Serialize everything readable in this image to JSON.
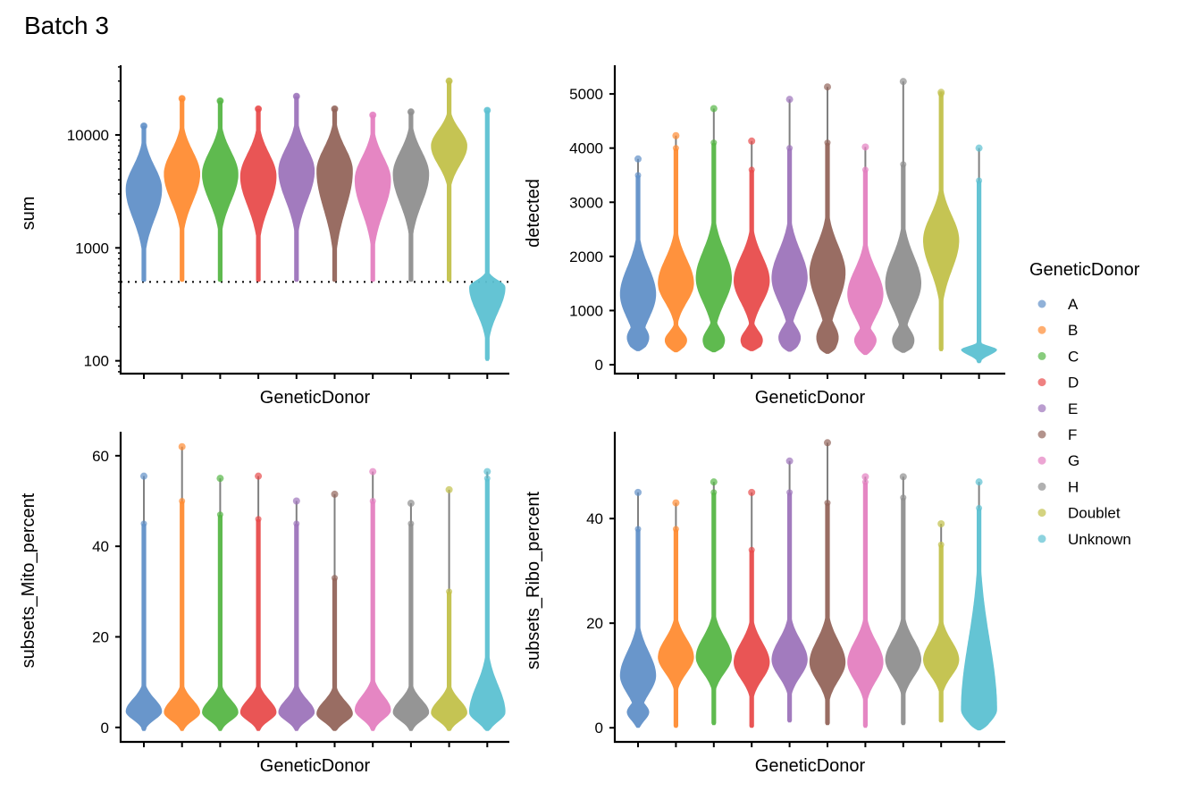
{
  "title": "Batch 3",
  "legend": {
    "title": "GeneticDonor",
    "placement": "right",
    "items": [
      {
        "label": "A",
        "color": "#6190C8"
      },
      {
        "label": "B",
        "color": "#FF8C33"
      },
      {
        "label": "C",
        "color": "#56B646"
      },
      {
        "label": "D",
        "color": "#E84C4C"
      },
      {
        "label": "E",
        "color": "#9D74BB"
      },
      {
        "label": "F",
        "color": "#93655B"
      },
      {
        "label": "G",
        "color": "#E47FC0"
      },
      {
        "label": "H",
        "color": "#8F8F8F"
      },
      {
        "label": "Doublet",
        "color": "#C2C14A"
      },
      {
        "label": "Unknown",
        "color": "#5CC1D2"
      }
    ]
  },
  "chart_data": [
    {
      "type": "violin",
      "xlabel": "GeneticDonor",
      "ylabel": "sum",
      "yscale": "log10",
      "ylim": [
        77,
        41400
      ],
      "yticks": [
        100,
        1000,
        10000
      ],
      "ytick_labels": [
        "100",
        "1000",
        "10000"
      ],
      "hline": {
        "value": 500,
        "style": "dotted"
      },
      "categories": [
        "A",
        "B",
        "C",
        "D",
        "E",
        "F",
        "G",
        "H",
        "Doublet",
        "Unknown"
      ],
      "violins": [
        {
          "min": 500,
          "max": 12000,
          "mode": 3300,
          "spread_low": 0.26,
          "spread_high": 0.2,
          "outlier_max": 12000
        },
        {
          "min": 500,
          "max": 21000,
          "mode": 4500,
          "spread_low": 0.24,
          "spread_high": 0.2,
          "outlier_max": 21000
        },
        {
          "min": 500,
          "max": 20000,
          "mode": 4500,
          "spread_low": 0.24,
          "spread_high": 0.2,
          "outlier_max": 20000
        },
        {
          "min": 500,
          "max": 17000,
          "mode": 4300,
          "spread_low": 0.26,
          "spread_high": 0.2,
          "outlier_max": 17000
        },
        {
          "min": 500,
          "max": 22000,
          "mode": 4800,
          "spread_low": 0.26,
          "spread_high": 0.2,
          "outlier_max": 22000
        },
        {
          "min": 500,
          "max": 17000,
          "mode": 4800,
          "spread_low": 0.34,
          "spread_high": 0.2,
          "outlier_max": 17000
        },
        {
          "min": 500,
          "max": 15000,
          "mode": 4000,
          "spread_low": 0.28,
          "spread_high": 0.2,
          "outlier_max": 15000
        },
        {
          "min": 500,
          "max": 16000,
          "mode": 4500,
          "spread_low": 0.26,
          "spread_high": 0.2,
          "outlier_max": 16000
        },
        {
          "min": 500,
          "max": 30000,
          "mode": 8000,
          "spread_low": 0.17,
          "spread_high": 0.14,
          "outlier_max": 30000
        },
        {
          "min": 100,
          "max": 16500,
          "mode": 450,
          "spread_low": 0.22,
          "spread_high": 0.06,
          "outlier_max": 16500
        }
      ]
    },
    {
      "type": "violin",
      "xlabel": "GeneticDonor",
      "ylabel": "detected",
      "yscale": "linear",
      "ylim": [
        -165,
        5530
      ],
      "yticks": [
        0,
        1000,
        2000,
        3000,
        4000,
        5000
      ],
      "ytick_labels": [
        "0",
        "1000",
        "2000",
        "3000",
        "4000",
        "5000"
      ],
      "categories": [
        "A",
        "B",
        "C",
        "D",
        "E",
        "F",
        "G",
        "H",
        "Doublet",
        "Unknown"
      ],
      "violins": [
        {
          "min": 250,
          "max": 3500,
          "mode": 1300,
          "spread_low": 450,
          "spread_high": 500,
          "bump": 500,
          "outlier_max": 3800
        },
        {
          "min": 230,
          "max": 4000,
          "mode": 1500,
          "spread_low": 350,
          "spread_high": 450,
          "bump": 450,
          "outlier_max": 4230
        },
        {
          "min": 230,
          "max": 4100,
          "mode": 1600,
          "spread_low": 450,
          "spread_high": 500,
          "bump": 450,
          "outlier_max": 4730
        },
        {
          "min": 250,
          "max": 3600,
          "mode": 1550,
          "spread_low": 400,
          "spread_high": 450,
          "bump": 450,
          "outlier_max": 4130
        },
        {
          "min": 240,
          "max": 4000,
          "mode": 1600,
          "spread_low": 450,
          "spread_high": 500,
          "bump": 500,
          "outlier_max": 4900
        },
        {
          "min": 200,
          "max": 4100,
          "mode": 1700,
          "spread_low": 550,
          "spread_high": 500,
          "bump": 500,
          "outlier_max": 5130
        },
        {
          "min": 180,
          "max": 3600,
          "mode": 1300,
          "spread_low": 400,
          "spread_high": 450,
          "bump": 450,
          "outlier_max": 4020
        },
        {
          "min": 220,
          "max": 3700,
          "mode": 1500,
          "spread_low": 450,
          "spread_high": 500,
          "bump": 450,
          "outlier_max": 5230
        },
        {
          "min": 250,
          "max": 5000,
          "mode": 2300,
          "spread_low": 550,
          "spread_high": 450,
          "outlier_max": 5030
        },
        {
          "min": 30,
          "max": 3400,
          "mode": 280,
          "spread_low": 100,
          "spread_high": 60,
          "outlier_max": 4000
        }
      ]
    },
    {
      "type": "violin",
      "xlabel": "GeneticDonor",
      "ylabel": "subsets_Mito_percent",
      "yscale": "linear",
      "ylim": [
        -3.2,
        65.3
      ],
      "yticks": [
        0,
        20,
        40,
        60
      ],
      "ytick_labels": [
        "0",
        "20",
        "40",
        "60"
      ],
      "categories": [
        "A",
        "B",
        "C",
        "D",
        "E",
        "F",
        "G",
        "H",
        "Doublet",
        "Unknown"
      ],
      "violins": [
        {
          "min": -0.8,
          "max": 45,
          "mode": 3.5,
          "spread_low": 1.8,
          "spread_high": 2.8,
          "outlier_max": 55.5
        },
        {
          "min": -0.8,
          "max": 50,
          "mode": 3.3,
          "spread_low": 1.8,
          "spread_high": 2.8,
          "outlier_max": 62
        },
        {
          "min": -0.8,
          "max": 47,
          "mode": 3.3,
          "spread_low": 1.8,
          "spread_high": 2.8,
          "outlier_max": 55
        },
        {
          "min": -0.8,
          "max": 46,
          "mode": 3.3,
          "spread_low": 1.8,
          "spread_high": 2.8,
          "outlier_max": 55.5
        },
        {
          "min": -0.8,
          "max": 45,
          "mode": 3.3,
          "spread_low": 1.8,
          "spread_high": 2.8,
          "outlier_max": 50
        },
        {
          "min": -0.8,
          "max": 33,
          "mode": 3.0,
          "spread_low": 1.8,
          "spread_high": 2.8,
          "outlier_max": 51.5
        },
        {
          "min": -0.8,
          "max": 50,
          "mode": 3.8,
          "spread_low": 2.0,
          "spread_high": 3.2,
          "outlier_max": 56.5
        },
        {
          "min": -0.8,
          "max": 45,
          "mode": 3.3,
          "spread_low": 1.8,
          "spread_high": 2.8,
          "outlier_max": 49.5
        },
        {
          "min": -0.8,
          "max": 30,
          "mode": 3.2,
          "spread_low": 1.8,
          "spread_high": 2.8,
          "outlier_max": 52.5
        },
        {
          "min": -0.8,
          "max": 55,
          "mode": 3.3,
          "spread_low": 2.0,
          "spread_high": 6.0,
          "outlier_max": 56.5
        }
      ]
    },
    {
      "type": "violin",
      "xlabel": "GeneticDonor",
      "ylabel": "subsets_Ribo_percent",
      "yscale": "linear",
      "ylim": [
        -2.7,
        56.6
      ],
      "yticks": [
        0,
        20,
        40
      ],
      "ytick_labels": [
        "0",
        "20",
        "40"
      ],
      "categories": [
        "A",
        "B",
        "C",
        "D",
        "E",
        "F",
        "G",
        "H",
        "Doublet",
        "Unknown"
      ],
      "violins": [
        {
          "min": 0,
          "max": 38,
          "mode": 10,
          "spread_low": 3.5,
          "spread_high": 4.5,
          "bump": 3,
          "outlier_max": 45
        },
        {
          "min": 0,
          "max": 38,
          "mode": 13.5,
          "spread_low": 3.0,
          "spread_high": 3.5,
          "outlier_max": 43
        },
        {
          "min": 0.5,
          "max": 45,
          "mode": 13.5,
          "spread_low": 3.0,
          "spread_high": 3.8,
          "outlier_max": 47
        },
        {
          "min": 0,
          "max": 34,
          "mode": 12.5,
          "spread_low": 3.2,
          "spread_high": 3.8,
          "outlier_max": 45
        },
        {
          "min": 1,
          "max": 45,
          "mode": 13,
          "spread_low": 3.2,
          "spread_high": 3.8,
          "outlier_max": 51
        },
        {
          "min": 0.5,
          "max": 43,
          "mode": 12.5,
          "spread_low": 3.5,
          "spread_high": 4.2,
          "outlier_max": 54.5
        },
        {
          "min": 0,
          "max": 47,
          "mode": 12.5,
          "spread_low": 3.5,
          "spread_high": 4.0,
          "outlier_max": 48
        },
        {
          "min": 0.5,
          "max": 44,
          "mode": 13,
          "spread_low": 3.2,
          "spread_high": 3.8,
          "outlier_max": 48
        },
        {
          "min": 1,
          "max": 35,
          "mode": 13,
          "spread_low": 3.0,
          "spread_high": 3.5,
          "outlier_max": 39
        },
        {
          "min": -0.5,
          "max": 42,
          "mode": 3.5,
          "spread_low": 2.5,
          "spread_high": 13,
          "outlier_max": 47
        }
      ]
    }
  ]
}
